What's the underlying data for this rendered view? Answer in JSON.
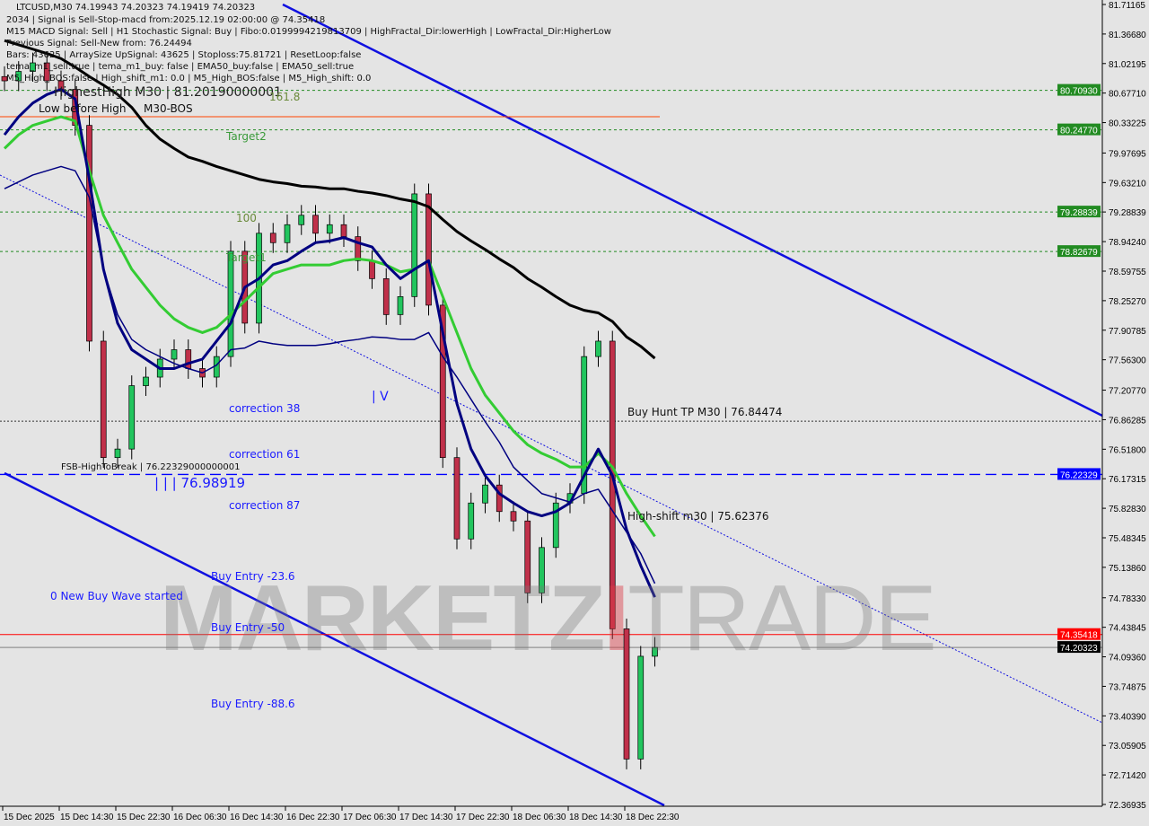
{
  "header": {
    "symbol_line": "LTCUSD,M30  74.19943 74.20323 74.19419 74.20323",
    "info_lines": [
      "2034 | Signal is Sell-Stop-macd from:2025.12.19 02:00:00 @ 74.35418",
      "M15 MACD Signal: Sell | H1 Stochastic Signal: Buy | Fibo:0.0199994219813709 | HighFractal_Dir:lowerHigh | LowFractal_Dir:HigherLow",
      "Previous Signal: Sell-New from: 76.24494",
      "Bars: 43625 | ArraySize UpSignal: 43625 | Stoploss:75.81721 | ResetLoop:false",
      "tema_m1_sell:true | tema_m1_buy: false | EMA50_buy:false | EMA50_sell:true",
      "M5_High_BOS:false | High_shift_m1: 0.0 | M5_High_BOS:false | M5_High_shift: 0.0"
    ],
    "overlay_text": "HighestHigh   M30 | 81.20190000001"
  },
  "labels": {
    "low_before_high": "Low before High",
    "m30_bos": "M30-BOS",
    "fib_1618": "161.8",
    "target2": "Target2",
    "fib_100": "100",
    "target1": "Target1",
    "correction_38": "correction 38",
    "correction_61": "correction 61",
    "correction_87": "correction 87",
    "fsb": "FSB-HighToBreak | 76.22329000000001",
    "level_value": "| | |  76.98919",
    "new_buy_wave": "0 New Buy Wave started",
    "buy_entry_236": "Buy Entry -23.6",
    "buy_entry_50": "Buy Entry -50",
    "buy_entry_886": "Buy Entry -88.6",
    "buy_hunt": "Buy Hunt TP M30 | 76.84474",
    "high_shift": "High-shift m30 | 75.62376",
    "wave_marks": "| V"
  },
  "watermark": {
    "part1": "MARKETZ",
    "part2": "I",
    "part3": "TRADE"
  },
  "colors": {
    "background": "#e4e4e4",
    "bull": "#22c55e",
    "bear": "#c0304a",
    "ma_black": "#000000",
    "ema_green": "#33cc33",
    "ma_navy": "#000080",
    "channel": "#1010e0",
    "sell_line": "#ff0000",
    "bid_line": "#808080",
    "level_green": "#228b22",
    "level_blue": "#0000ff"
  },
  "chart_data": {
    "type": "candlestick",
    "symbol": "LTCUSD",
    "timeframe": "M30",
    "x_start": "15 Dec 2025 06:30",
    "x_interval": "2h",
    "closes": [
      80.82,
      80.93,
      81.03,
      80.82,
      80.72,
      80.3,
      77.78,
      76.42,
      76.52,
      77.26,
      77.36,
      77.57,
      77.68,
      77.46,
      77.36,
      77.6,
      78.83,
      77.99,
      79.04,
      78.93,
      79.14,
      79.25,
      79.04,
      79.14,
      79.0,
      78.72,
      78.51,
      78.09,
      78.3,
      79.5,
      78.2,
      76.42,
      75.47,
      75.89,
      76.1,
      75.79,
      75.68,
      74.84,
      75.37,
      75.89,
      76.0,
      77.6,
      77.78,
      74.42,
      72.9,
      74.1,
      74.20323
    ],
    "ma_black": [
      81.29,
      81.24,
      81.19,
      81.14,
      81.08,
      80.98,
      80.87,
      80.77,
      80.66,
      80.51,
      80.3,
      80.14,
      80.03,
      79.93,
      79.88,
      79.82,
      79.77,
      79.72,
      79.67,
      79.64,
      79.62,
      79.59,
      79.58,
      79.56,
      79.56,
      79.53,
      79.51,
      79.48,
      79.44,
      79.41,
      79.35,
      79.2,
      79.06,
      78.95,
      78.85,
      78.74,
      78.64,
      78.51,
      78.41,
      78.3,
      78.2,
      78.14,
      78.11,
      78.01,
      77.83,
      77.72,
      77.58
    ],
    "ema_green": [
      80.03,
      80.19,
      80.3,
      80.35,
      80.4,
      80.35,
      79.77,
      79.25,
      78.93,
      78.62,
      78.41,
      78.2,
      78.04,
      77.94,
      77.88,
      77.94,
      78.09,
      78.25,
      78.41,
      78.57,
      78.62,
      78.67,
      78.67,
      78.67,
      78.72,
      78.74,
      78.72,
      78.67,
      78.59,
      78.62,
      78.72,
      78.3,
      77.88,
      77.46,
      77.15,
      76.94,
      76.73,
      76.57,
      76.47,
      76.4,
      76.31,
      76.31,
      76.47,
      76.31,
      76.0,
      75.74,
      75.5
    ],
    "ma_navy_thick": [
      80.19,
      80.4,
      80.56,
      80.66,
      80.72,
      80.61,
      79.67,
      78.62,
      77.99,
      77.68,
      77.57,
      77.46,
      77.46,
      77.52,
      77.57,
      77.78,
      77.99,
      78.41,
      78.51,
      78.67,
      78.72,
      78.83,
      78.93,
      78.95,
      78.99,
      78.93,
      78.88,
      78.67,
      78.51,
      78.62,
      78.72,
      77.88,
      77.05,
      76.52,
      76.21,
      76.0,
      75.89,
      75.79,
      75.74,
      75.79,
      75.89,
      76.21,
      76.52,
      76.21,
      75.58,
      75.16,
      74.79
    ],
    "ma_navy_thin": [
      79.56,
      79.64,
      79.72,
      79.77,
      79.82,
      79.77,
      79.46,
      78.62,
      78.09,
      77.8,
      77.68,
      77.6,
      77.52,
      77.46,
      77.41,
      77.5,
      77.68,
      77.7,
      77.78,
      77.75,
      77.73,
      77.73,
      77.73,
      77.75,
      77.78,
      77.8,
      77.83,
      77.82,
      77.8,
      77.8,
      77.88,
      77.6,
      77.36,
      77.1,
      76.84,
      76.6,
      76.31,
      76.15,
      76.0,
      75.95,
      75.9,
      76.0,
      76.05,
      75.8,
      75.55,
      75.3,
      74.95
    ],
    "levels": [
      {
        "price": 80.7093,
        "label": "80.70930",
        "style": "green"
      },
      {
        "price": 80.2477,
        "label": "80.24770",
        "style": "green"
      },
      {
        "price": 79.28839,
        "label": "79.28839",
        "style": "green"
      },
      {
        "price": 78.82679,
        "label": "78.82679",
        "style": "green"
      },
      {
        "price": 76.84474,
        "label": "",
        "style": "hunt"
      },
      {
        "price": 76.22329,
        "label": "76.22329",
        "style": "blue"
      },
      {
        "price": 74.35418,
        "label": "74.35418",
        "style": "red"
      },
      {
        "price": 74.20323,
        "label": "74.20323",
        "style": "bid"
      }
    ],
    "y_ticks": [
      "81.71165",
      "81.36680",
      "81.02195",
      "80.67710",
      "80.33225",
      "79.97695",
      "79.63210",
      "79.28839",
      "78.94240",
      "78.59755",
      "78.25270",
      "77.90785",
      "77.56300",
      "77.20770",
      "76.86285",
      "76.51800",
      "76.17315",
      "75.82830",
      "75.48345",
      "75.13860",
      "74.78330",
      "74.43845",
      "74.09360",
      "73.74875",
      "73.40390",
      "73.05905",
      "72.71420",
      "72.36935"
    ],
    "ylim": [
      72.36935,
      81.71165
    ],
    "x_ticks": [
      "15 Dec 2025",
      "15 Dec 14:30",
      "15 Dec 22:30",
      "16 Dec 06:30",
      "16 Dec 14:30",
      "16 Dec 22:30",
      "17 Dec 06:30",
      "17 Dec 14:30",
      "17 Dec 22:30",
      "18 Dec 06:30",
      "18 Dec 14:30",
      "18 Dec 22:30"
    ],
    "grid": false
  }
}
